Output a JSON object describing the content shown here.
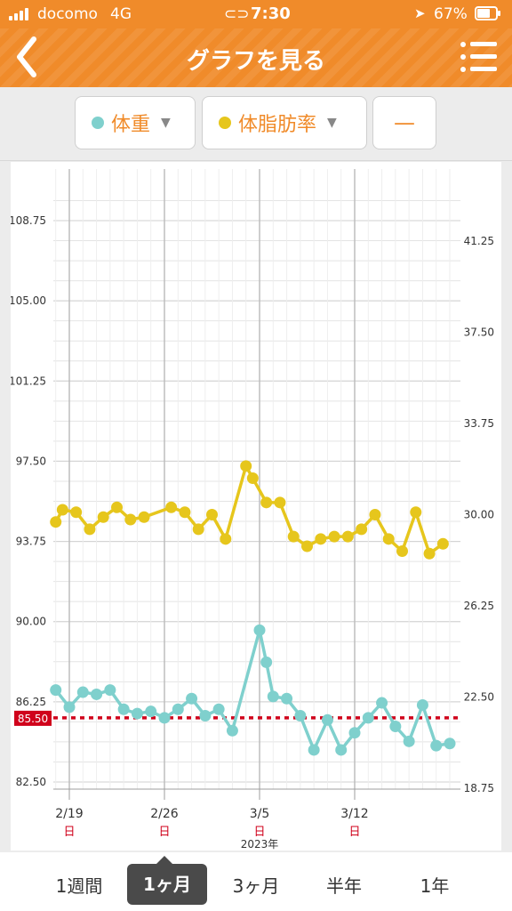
{
  "status_bar": {
    "carrier": "docomo",
    "network": "4G",
    "time": "7:30",
    "battery": "67%",
    "link_icon": "link-icon",
    "location_icon": "location-arrow-icon"
  },
  "nav": {
    "title": "グラフを見る",
    "back_icon": "chevron-left-icon",
    "menu_icon": "list-menu-icon"
  },
  "filters": {
    "weight_label": "体重",
    "fat_label": "体脂肪率",
    "dash_label": "—",
    "weight_color": "#7fd0cd",
    "fat_color": "#e6c61c"
  },
  "chart_data": {
    "type": "line",
    "x_ticks": [
      "2/19",
      "2/26",
      "3/5",
      "3/12"
    ],
    "x_tick_sub": [
      "日",
      "日",
      "日",
      "日"
    ],
    "year_label": "2023年",
    "left_axis": {
      "ticks": [
        "108.75",
        "105.00",
        "101.25",
        "97.50",
        "93.75",
        "90.00",
        "86.25",
        "82.50"
      ],
      "range": [
        82.5,
        108.75
      ]
    },
    "right_axis": {
      "ticks": [
        "41.25",
        "37.50",
        "33.75",
        "30.00",
        "26.25",
        "22.50",
        "18.75"
      ],
      "range": [
        18.75,
        41.25
      ]
    },
    "target_line": {
      "label": "85.50",
      "value": 85.5,
      "color": "#d0021b"
    },
    "series": [
      {
        "axis": "left",
        "color": "#7fd0cd",
        "points": [
          {
            "x": 0,
            "y": 86.8
          },
          {
            "x": 1,
            "y": 86.0
          },
          {
            "x": 2,
            "y": 86.7
          },
          {
            "x": 3,
            "y": 86.6
          },
          {
            "x": 4,
            "y": 86.8
          },
          {
            "x": 5,
            "y": 85.9
          },
          {
            "x": 6,
            "y": 85.7
          },
          {
            "x": 7,
            "y": 85.8
          },
          {
            "x": 8,
            "y": 85.5
          },
          {
            "x": 9,
            "y": 85.9
          },
          {
            "x": 10,
            "y": 86.4
          },
          {
            "x": 11,
            "y": 85.6
          },
          {
            "x": 12,
            "y": 85.9
          },
          {
            "x": 13,
            "y": 84.9
          },
          {
            "x": 15,
            "y": 89.6
          },
          {
            "x": 15.5,
            "y": 88.1
          },
          {
            "x": 16,
            "y": 86.5
          },
          {
            "x": 17,
            "y": 86.4
          },
          {
            "x": 18,
            "y": 85.6
          },
          {
            "x": 19,
            "y": 84.0
          },
          {
            "x": 20,
            "y": 85.4
          },
          {
            "x": 21,
            "y": 84.0
          },
          {
            "x": 22,
            "y": 84.8
          },
          {
            "x": 23,
            "y": 85.5
          },
          {
            "x": 24,
            "y": 86.2
          },
          {
            "x": 25,
            "y": 85.1
          },
          {
            "x": 26,
            "y": 84.4
          },
          {
            "x": 27,
            "y": 86.1
          },
          {
            "x": 28,
            "y": 84.2
          },
          {
            "x": 29,
            "y": 84.3
          }
        ]
      },
      {
        "axis": "right",
        "color": "#e6c61c",
        "points": [
          {
            "x": 0,
            "y": 29.7
          },
          {
            "x": 0.5,
            "y": 30.2
          },
          {
            "x": 1.5,
            "y": 30.1
          },
          {
            "x": 2.5,
            "y": 29.4
          },
          {
            "x": 3.5,
            "y": 29.9
          },
          {
            "x": 4.5,
            "y": 30.3
          },
          {
            "x": 5.5,
            "y": 29.8
          },
          {
            "x": 6.5,
            "y": 29.9
          },
          {
            "x": 8.5,
            "y": 30.3
          },
          {
            "x": 9.5,
            "y": 30.1
          },
          {
            "x": 10.5,
            "y": 29.4
          },
          {
            "x": 11.5,
            "y": 30.0
          },
          {
            "x": 12.5,
            "y": 29.0
          },
          {
            "x": 14,
            "y": 32.0
          },
          {
            "x": 14.5,
            "y": 31.5
          },
          {
            "x": 15.5,
            "y": 30.5
          },
          {
            "x": 16.5,
            "y": 30.5
          },
          {
            "x": 17.5,
            "y": 29.1
          },
          {
            "x": 18.5,
            "y": 28.7
          },
          {
            "x": 19.5,
            "y": 29.0
          },
          {
            "x": 20.5,
            "y": 29.1
          },
          {
            "x": 21.5,
            "y": 29.1
          },
          {
            "x": 22.5,
            "y": 29.4
          },
          {
            "x": 23.5,
            "y": 30.0
          },
          {
            "x": 24.5,
            "y": 29.0
          },
          {
            "x": 25.5,
            "y": 28.5
          },
          {
            "x": 26.5,
            "y": 30.1
          },
          {
            "x": 27.5,
            "y": 28.4
          },
          {
            "x": 28.5,
            "y": 28.8
          }
        ]
      }
    ],
    "grid": true
  },
  "period": {
    "options": [
      "1週間",
      "1ヶ月",
      "3ヶ月",
      "半年",
      "1年"
    ],
    "selected": "1ヶ月"
  }
}
